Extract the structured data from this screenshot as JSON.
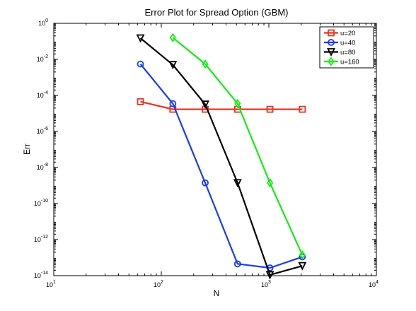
{
  "chart_data": {
    "type": "line",
    "title": "Error Plot for Spread Option (GBM)",
    "xlabel": "N",
    "ylabel": "Err",
    "x_scale": "log",
    "y_scale": "log",
    "xlim": [
      10,
      10000
    ],
    "ylim": [
      1e-14,
      1
    ],
    "x_ticks": [
      {
        "value": 10,
        "base": "10",
        "exp": "1"
      },
      {
        "value": 100,
        "base": "10",
        "exp": "2"
      },
      {
        "value": 1000,
        "base": "10",
        "exp": "3"
      },
      {
        "value": 10000,
        "base": "10",
        "exp": "4"
      }
    ],
    "y_ticks": [
      {
        "value": 1,
        "base": "10",
        "exp": "0"
      },
      {
        "value": 0.01,
        "base": "10",
        "exp": "-2"
      },
      {
        "value": 0.0001,
        "base": "10",
        "exp": "-4"
      },
      {
        "value": 1e-06,
        "base": "10",
        "exp": "-6"
      },
      {
        "value": 1e-08,
        "base": "10",
        "exp": "-8"
      },
      {
        "value": 1e-10,
        "base": "10",
        "exp": "-10"
      },
      {
        "value": 1e-12,
        "base": "10",
        "exp": "-12"
      },
      {
        "value": 1e-14,
        "base": "10",
        "exp": "-14"
      }
    ],
    "grid": false,
    "legend_position": "top-right",
    "series": [
      {
        "name": "u=20",
        "color": "#ee3322",
        "marker": "square",
        "x": [
          64,
          128,
          256,
          512,
          1024,
          2048
        ],
        "y": [
          4.5e-05,
          1.7e-05,
          1.7e-05,
          1.7e-05,
          1.7e-05,
          1.7e-05
        ]
      },
      {
        "name": "u=40",
        "color": "#1a3cf0",
        "marker": "circle",
        "x": [
          64,
          128,
          256,
          512,
          1024,
          2048
        ],
        "y": [
          0.0055,
          3.5e-05,
          1.4e-09,
          4.5e-14,
          2.7e-14,
          1.1e-13
        ]
      },
      {
        "name": "u=80",
        "color": "#000000",
        "marker": "triangle-down",
        "x": [
          64,
          128,
          256,
          512,
          1024,
          2048
        ],
        "y": [
          0.15,
          0.005,
          3.2e-05,
          1.4e-09,
          1.1e-14,
          3.5e-14
        ]
      },
      {
        "name": "u=160",
        "color": "#11ee11",
        "marker": "diamond",
        "x": [
          128,
          256,
          512,
          1024,
          2048
        ],
        "y": [
          0.16,
          0.0055,
          3.5e-05,
          1.4e-09,
          1.4e-13
        ]
      }
    ]
  }
}
